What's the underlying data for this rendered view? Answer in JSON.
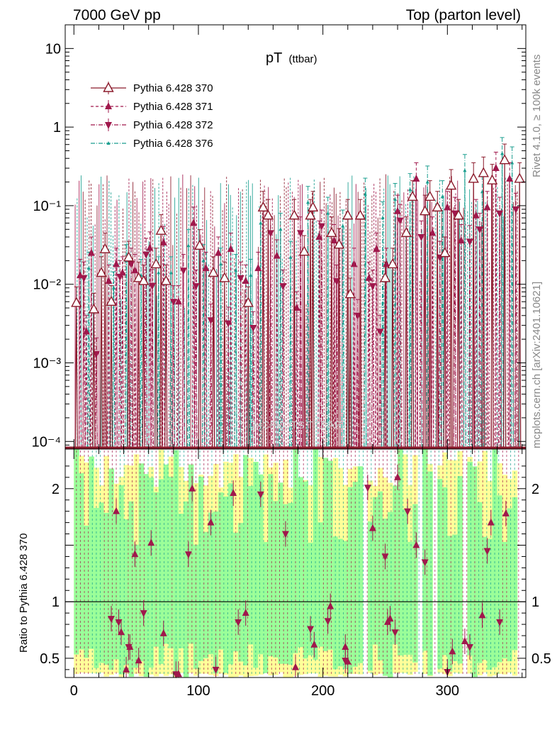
{
  "chart_data": [
    {
      "type": "line",
      "panel": "main",
      "title": "pT (ttbar)",
      "title_main": "pT",
      "title_sub": "(ttbar)",
      "header_left": "7000 GeV pp",
      "header_right": "Top (parton level)",
      "side_label_top": "Rivet 4.1.0, ≥ 100k events",
      "side_label_bottom": "mcplots.cern.ch [arXiv:2401.10621]",
      "watermark": "MCPLOTS TTBAR",
      "xlabel": "",
      "ylabel": "",
      "xlim": [
        -7,
        363
      ],
      "ylim": [
        8e-05,
        20
      ],
      "yscale": "log",
      "yticks": [
        {
          "value": 10,
          "label": "10"
        },
        {
          "value": 1,
          "label": "1"
        },
        {
          "value": 0.1,
          "label": "10⁻¹"
        },
        {
          "value": 0.01,
          "label": "10⁻²"
        },
        {
          "value": 0.001,
          "label": "10⁻³"
        },
        {
          "value": 0.0001,
          "label": "10⁻⁴"
        }
      ],
      "legend_position": "top-left",
      "series": [
        {
          "name": "Pythia 6.428 370",
          "color": "#8b1a2b",
          "marker": "triangle-up-open",
          "dash": "",
          "points": [
            [
              2,
              0.0058
            ],
            [
              16,
              0.0048
            ],
            [
              22,
              0.014
            ],
            [
              25,
              0.028
            ],
            [
              30,
              0.006
            ],
            [
              44,
              0.022
            ],
            [
              52,
              0.012
            ],
            [
              56,
              0.011
            ],
            [
              66,
              0.018
            ],
            [
              70,
              0.048
            ],
            [
              74,
              0.011
            ],
            [
              101,
              0.031
            ],
            [
              112,
              0.014
            ],
            [
              121,
              0.012
            ],
            [
              140,
              0.0058
            ],
            [
              152,
              0.095
            ],
            [
              156,
              0.075
            ],
            [
              177,
              0.075
            ],
            [
              185,
              0.026
            ],
            [
              190,
              0.075
            ],
            [
              192,
              0.095
            ],
            [
              207,
              0.045
            ],
            [
              213,
              0.032
            ],
            [
              220,
              0.075
            ],
            [
              230,
              0.075
            ],
            [
              222,
              0.0075
            ],
            [
              250,
              0.012
            ],
            [
              256,
              0.018
            ],
            [
              267,
              0.045
            ],
            [
              272,
              0.13
            ],
            [
              282,
              0.085
            ],
            [
              286,
              0.13
            ],
            [
              292,
              0.095
            ],
            [
              298,
              0.025
            ],
            [
              303,
              0.18
            ],
            [
              309,
              0.075
            ],
            [
              321,
              0.22
            ],
            [
              329,
              0.26
            ],
            [
              336,
              0.21
            ],
            [
              346,
              0.38
            ],
            [
              358,
              0.22
            ]
          ]
        },
        {
          "name": "Pythia 6.428 371",
          "color": "#a0184c",
          "marker": "triangle-up-filled",
          "dash": "4,3",
          "points": [
            [
              5,
              0.013
            ],
            [
              10,
              0.0025
            ],
            [
              14,
              0.025
            ],
            [
              28,
              0.011
            ],
            [
              34,
              0.018
            ],
            [
              39,
              0.014
            ],
            [
              49,
              0.015
            ],
            [
              61,
              0.029
            ],
            [
              72,
              0.034
            ],
            [
              84,
              0.006
            ],
            [
              96,
              0.06
            ],
            [
              106,
              0.016
            ],
            [
              116,
              0.025
            ],
            [
              126,
              0.028
            ],
            [
              138,
              0.011
            ],
            [
              148,
              0.016
            ],
            [
              163,
              0.023
            ],
            [
              179,
              0.005
            ],
            [
              197,
              0.04
            ],
            [
              209,
              0.036
            ],
            [
              225,
              0.018
            ],
            [
              237,
              0.012
            ],
            [
              243,
              0.028
            ],
            [
              251,
              0.018
            ],
            [
              260,
              0.085
            ],
            [
              275,
              0.22
            ],
            [
              288,
              0.045
            ],
            [
              300,
              0.095
            ],
            [
              311,
              0.036
            ],
            [
              323,
              0.075
            ],
            [
              332,
              0.095
            ],
            [
              339,
              0.3
            ],
            [
              350,
              0.22
            ]
          ]
        },
        {
          "name": "Pythia 6.428 372",
          "color": "#a0184c",
          "marker": "triangle-down-filled",
          "dash": "6,2,1,2",
          "points": [
            [
              8,
              0.012
            ],
            [
              18,
              0.0013
            ],
            [
              37,
              0.0125
            ],
            [
              46,
              0.018
            ],
            [
              58,
              0.024
            ],
            [
              63,
              0.0096
            ],
            [
              80,
              0.006
            ],
            [
              88,
              0.015
            ],
            [
              98,
              0.0095
            ],
            [
              110,
              0.0035
            ],
            [
              124,
              0.0032
            ],
            [
              134,
              0.012
            ],
            [
              144,
              0.0028
            ],
            [
              158,
              0.045
            ],
            [
              168,
              0.0095
            ],
            [
              182,
              0.045
            ],
            [
              199,
              0.055
            ],
            [
              211,
              0.011
            ],
            [
              228,
              0.004
            ],
            [
              240,
              0.0095
            ],
            [
              246,
              0.0025
            ],
            [
              262,
              0.065
            ],
            [
              279,
              0.04
            ],
            [
              294,
              0.022
            ],
            [
              306,
              0.08
            ],
            [
              318,
              0.035
            ],
            [
              326,
              0.05
            ],
            [
              342,
              0.08
            ],
            [
              355,
              0.09
            ]
          ]
        },
        {
          "name": "Pythia 6.428 376",
          "color": "#1a9e8f",
          "marker": "triangle-up-small",
          "dash": "6,2,1,2",
          "points": [
            [
              12,
              0.016
            ],
            [
              32,
              0.009
            ],
            [
              42,
              0.02
            ],
            [
              54,
              0.013
            ],
            [
              68,
              0.014
            ],
            [
              78,
              0.014
            ],
            [
              92,
              0.031
            ],
            [
              104,
              0.02
            ],
            [
              118,
              0.018
            ],
            [
              130,
              0.015
            ],
            [
              142,
              0.013
            ],
            [
              150,
              0.06
            ],
            [
              166,
              0.05
            ],
            [
              174,
              0.022
            ],
            [
              188,
              0.11
            ],
            [
              204,
              0.08
            ],
            [
              216,
              0.055
            ],
            [
              234,
              0.14
            ],
            [
              248,
              0.07
            ],
            [
              258,
              0.12
            ],
            [
              270,
              0.16
            ],
            [
              284,
              0.2
            ],
            [
              296,
              0.13
            ],
            [
              314,
              0.28
            ],
            [
              328,
              0.15
            ],
            [
              344,
              0.46
            ],
            [
              352,
              0.35
            ]
          ]
        }
      ]
    },
    {
      "type": "line",
      "panel": "ratio",
      "ylabel": "Ratio to Pythia 6.428 370",
      "xlabel": "",
      "xlim": [
        -7,
        363
      ],
      "ylim": [
        0.33,
        2.35
      ],
      "yticks": [
        {
          "value": 0.5,
          "label": "0.5"
        },
        {
          "value": 1,
          "label": "1"
        },
        {
          "value": 2,
          "label": "2"
        }
      ],
      "xticks": [
        {
          "value": 0,
          "label": "0"
        },
        {
          "value": 100,
          "label": "100"
        },
        {
          "value": 200,
          "label": "200"
        },
        {
          "value": 300,
          "label": "300"
        }
      ],
      "reference_line": 1,
      "band_colors": {
        "inner": "#99ff99",
        "outer": "#ffff99"
      },
      "series": [
        {
          "name": "Pythia 6.428 371",
          "color": "#a0184c",
          "marker": "triangle-up-filled",
          "points": [
            [
              34,
              1.8
            ],
            [
              38,
              0.73
            ],
            [
              42,
              0.4
            ],
            [
              45,
              0.6
            ],
            [
              49,
              1.42
            ],
            [
              52,
              0.48
            ],
            [
              62,
              1.52
            ],
            [
              72,
              0.72
            ],
            [
              84,
              0.36
            ],
            [
              95,
              2.0
            ],
            [
              110,
              1.7
            ],
            [
              128,
              1.96
            ],
            [
              138,
              0.9
            ],
            [
              178,
              0.42
            ],
            [
              193,
              0.62
            ],
            [
              206,
              0.96
            ],
            [
              218,
              0.6
            ],
            [
              220,
              0.47
            ],
            [
              240,
              1.65
            ],
            [
              252,
              0.82
            ],
            [
              254,
              0.85
            ],
            [
              260,
              2.1
            ],
            [
              275,
              1.5
            ],
            [
              304,
              0.56
            ],
            [
              314,
              0.65
            ],
            [
              328,
              0.88
            ],
            [
              335,
              1.7
            ],
            [
              347,
              1.78
            ]
          ]
        },
        {
          "name": "Pythia 6.428 372",
          "color": "#a0184c",
          "marker": "triangle-down-filled",
          "points": [
            [
              30,
              0.85
            ],
            [
              36,
              0.82
            ],
            [
              44,
              0.6
            ],
            [
              56,
              0.9
            ],
            [
              82,
              0.36
            ],
            [
              92,
              1.42
            ],
            [
              114,
              0.4
            ],
            [
              132,
              0.82
            ],
            [
              150,
              1.95
            ],
            [
              170,
              1.6
            ],
            [
              190,
              0.76
            ],
            [
              204,
              0.83
            ],
            [
              218,
              0.48
            ],
            [
              236,
              2.01
            ],
            [
              250,
              1.4
            ],
            [
              258,
              0.73
            ],
            [
              268,
              1.8
            ],
            [
              282,
              1.35
            ],
            [
              300,
              0.38
            ],
            [
              318,
              0.6
            ],
            [
              332,
              1.45
            ],
            [
              342,
              0.82
            ]
          ]
        }
      ]
    }
  ]
}
